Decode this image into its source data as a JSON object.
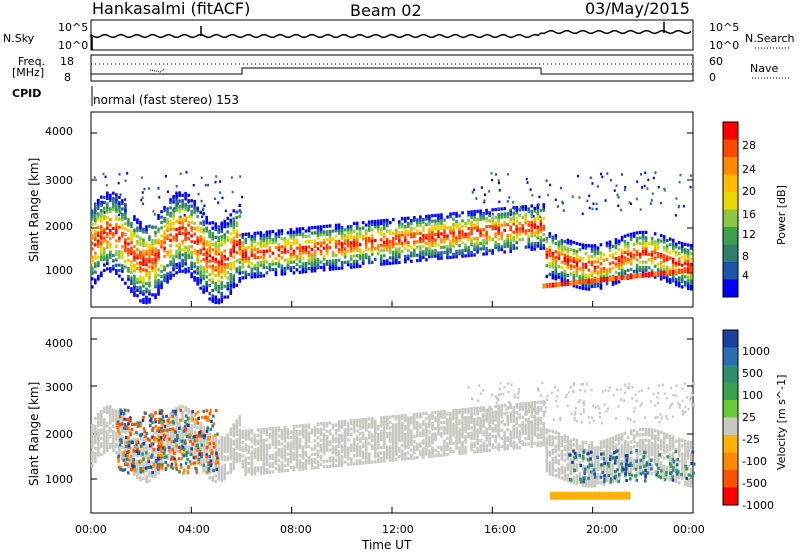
{
  "header": {
    "station": "Hankasalmi (fitACF)",
    "beam": "Beam 02",
    "date": "03/May/2015"
  },
  "noise_panel": {
    "left_label": "N.Sky",
    "left_ticks": [
      "10^5",
      "10^0"
    ],
    "right_ticks": [
      "10^5",
      "10^0"
    ],
    "right_label": "N.Search"
  },
  "freq_panel": {
    "left_label_1": "Freq.",
    "left_label_2": "[MHz]",
    "left_ticks": [
      "18",
      "8"
    ],
    "right_ticks": [
      "60",
      "0"
    ],
    "right_label": "Nave"
  },
  "cpid": {
    "label": "CPID",
    "mode": "normal (fast stereo) 153"
  },
  "chart_data": [
    {
      "type": "heatmap",
      "ylabel": "Slant Range [km]",
      "y_ticks": [
        "4000",
        "3000",
        "2000",
        "1000"
      ],
      "ylim": [
        180,
        4500
      ],
      "x_ticks": [
        "00:00",
        "04:00",
        "08:00",
        "12:00",
        "16:00",
        "20:00",
        "00:00"
      ],
      "xlim_hours": [
        0,
        24
      ],
      "colorbar": {
        "label": "Power [dB]",
        "ticks": [
          "28",
          "24",
          "20",
          "16",
          "12",
          "8",
          "4"
        ],
        "colors": [
          "#ff0000",
          "#ff4800",
          "#ff8a00",
          "#ffba00",
          "#e8d800",
          "#8dc63f",
          "#3aa050",
          "#2f7e6a",
          "#1d56a8",
          "#0000ff"
        ]
      }
    },
    {
      "type": "heatmap",
      "ylabel": "Slant Range [km]",
      "y_ticks": [
        "4000",
        "3000",
        "2000",
        "1000"
      ],
      "ylim": [
        180,
        4500
      ],
      "x_ticks": [
        "00:00",
        "04:00",
        "08:00",
        "12:00",
        "16:00",
        "20:00",
        "00:00"
      ],
      "xlabel": "Time UT",
      "xlim_hours": [
        0,
        24
      ],
      "colorbar": {
        "label": "Velocity [m s^-1]",
        "ticks": [
          "1000",
          "500",
          "100",
          "25",
          "-25",
          "-100",
          "-500",
          "-1000"
        ],
        "colors": [
          "#1d3fa0",
          "#2b6fb0",
          "#2e8f6e",
          "#3aa050",
          "#66cc33",
          "#c8c8c0",
          "#ffb000",
          "#ff8a00",
          "#ff5000",
          "#ff0000"
        ]
      }
    }
  ]
}
